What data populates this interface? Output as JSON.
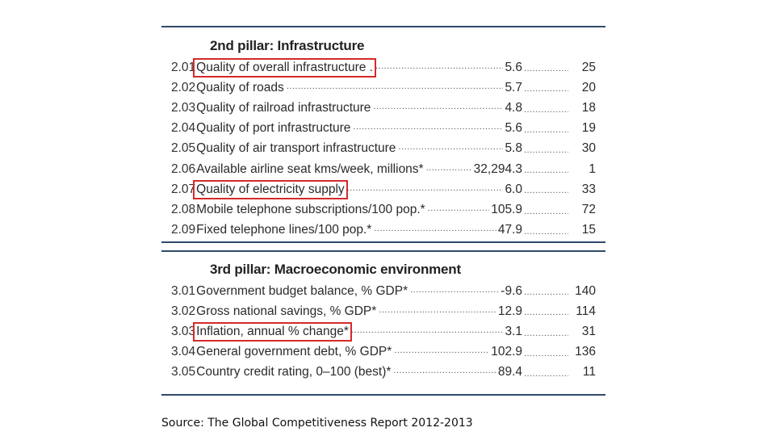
{
  "pillar2": {
    "title": "2nd pillar: Infrastructure",
    "rows": [
      {
        "code": "2.01",
        "label": "Quality of overall infrastructure .",
        "value": "5.6",
        "rank": "25",
        "highlighted": true
      },
      {
        "code": "2.02",
        "label": "Quality of roads",
        "value": "5.7",
        "rank": "20",
        "highlighted": false
      },
      {
        "code": "2.03",
        "label": "Quality of railroad infrastructure",
        "value": "4.8",
        "rank": "18",
        "highlighted": false
      },
      {
        "code": "2.04",
        "label": "Quality of port infrastructure",
        "value": "5.6",
        "rank": "19",
        "highlighted": false
      },
      {
        "code": "2.05",
        "label": "Quality of air transport infrastructure",
        "value": "5.8",
        "rank": "30",
        "highlighted": false
      },
      {
        "code": "2.06",
        "label": "Available airline seat kms/week, millions*",
        "value": "32,294.3",
        "rank": "1",
        "highlighted": false
      },
      {
        "code": "2.07",
        "label": "Quality of electricity supply",
        "value": "6.0",
        "rank": "33",
        "highlighted": true
      },
      {
        "code": "2.08",
        "label": "Mobile telephone subscriptions/100 pop.*",
        "value": "105.9",
        "rank": "72",
        "highlighted": false
      },
      {
        "code": "2.09",
        "label": "Fixed telephone lines/100 pop.*",
        "value": "47.9",
        "rank": "15",
        "highlighted": false
      }
    ]
  },
  "pillar3": {
    "title": "3rd pillar: Macroeconomic environment",
    "rows": [
      {
        "code": "3.01",
        "label": "Government budget balance, % GDP*",
        "value": "-9.6",
        "rank": "140",
        "highlighted": false
      },
      {
        "code": "3.02",
        "label": "Gross national savings, % GDP*",
        "value": "12.9",
        "rank": "114",
        "highlighted": false
      },
      {
        "code": "3.03",
        "label": "Inflation, annual % change*",
        "value": "3.1",
        "rank": "31",
        "highlighted": true
      },
      {
        "code": "3.04",
        "label": "General government debt, % GDP*",
        "value": "102.9",
        "rank": "136",
        "highlighted": false
      },
      {
        "code": "3.05",
        "label": "Country credit rating, 0–100 (best)*",
        "value": "89.4",
        "rank": "11",
        "highlighted": false
      }
    ]
  },
  "source": "Source: The Global Competitiveness Report 2012-2013",
  "colors": {
    "rule": "#2f4a6b",
    "highlight": "#d42a2a"
  }
}
